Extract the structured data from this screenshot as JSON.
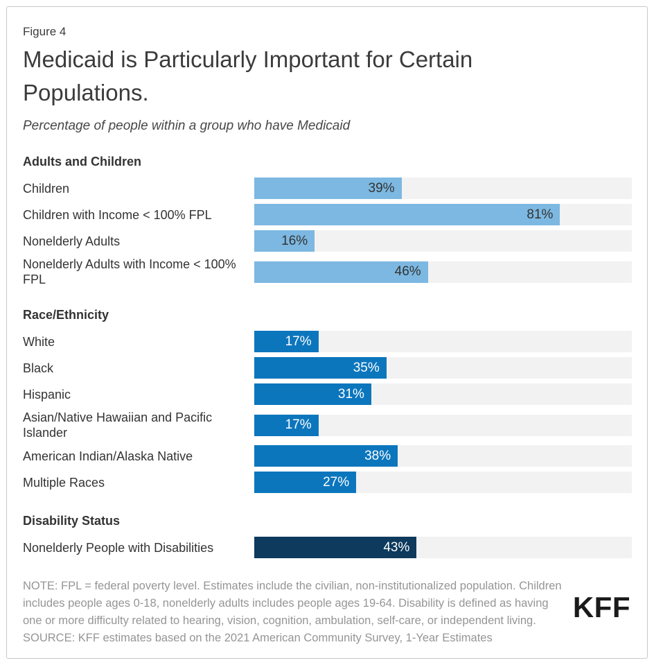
{
  "figure_label": "Figure 4",
  "title": "Medicaid is Particularly Important for Certain Populations.",
  "subtitle": "Percentage of people within a group who have Medicaid",
  "logo_text": "KFF",
  "colors": {
    "light_blue": "#7CB8E1",
    "blue": "#0C76BD",
    "navy": "#0D3A5D",
    "track_gray": "#F2F2F2",
    "dark_value_text": "#333333",
    "light_value_text": "#FFFFFF"
  },
  "chart_data": {
    "type": "bar",
    "orientation": "horizontal",
    "unit": "%",
    "xlim": [
      0,
      100
    ],
    "grid": false,
    "legend": "none",
    "title": "Medicaid is Particularly Important for Certain Populations.",
    "subtitle": "Percentage of people within a group who have Medicaid",
    "groups": [
      {
        "header": "Adults and Children",
        "bar_color": "#7CB8E1",
        "value_text_color": "#333333",
        "rows": [
          {
            "label": "Children",
            "value": 39,
            "value_label": "39%"
          },
          {
            "label": "Children with Income < 100% FPL",
            "value": 81,
            "value_label": "81%"
          },
          {
            "label": "Nonelderly Adults",
            "value": 16,
            "value_label": "16%"
          },
          {
            "label": "Nonelderly Adults with Income < 100% FPL",
            "value": 46,
            "value_label": "46%"
          }
        ]
      },
      {
        "header": "Race/Ethnicity",
        "bar_color": "#0C76BD",
        "value_text_color": "#FFFFFF",
        "rows": [
          {
            "label": "White",
            "value": 17,
            "value_label": "17%"
          },
          {
            "label": "Black",
            "value": 35,
            "value_label": "35%"
          },
          {
            "label": "Hispanic",
            "value": 31,
            "value_label": "31%"
          },
          {
            "label": "Asian/Native Hawaiian and Pacific Islander",
            "value": 17,
            "value_label": "17%"
          },
          {
            "label": "American Indian/Alaska Native",
            "value": 38,
            "value_label": "38%"
          },
          {
            "label": "Multiple Races",
            "value": 27,
            "value_label": "27%"
          }
        ]
      },
      {
        "header": "Disability Status",
        "bar_color": "#0D3A5D",
        "value_text_color": "#FFFFFF",
        "rows": [
          {
            "label": "Nonelderly People with Disabilities",
            "value": 43,
            "value_label": "43%"
          }
        ]
      }
    ]
  },
  "note_lines": [
    "NOTE: FPL = federal poverty level. Estimates include the civilian, non-institutionalized population. Children",
    "includes people ages 0-18, nonelderly adults includes people ages 19-64. Disability is defined as having",
    "one or more difficulty related to hearing, vision, cognition, ambulation, self-care, or independent living."
  ],
  "source_line": "SOURCE: KFF estimates based on the 2021 American Community Survey, 1-Year Estimates"
}
